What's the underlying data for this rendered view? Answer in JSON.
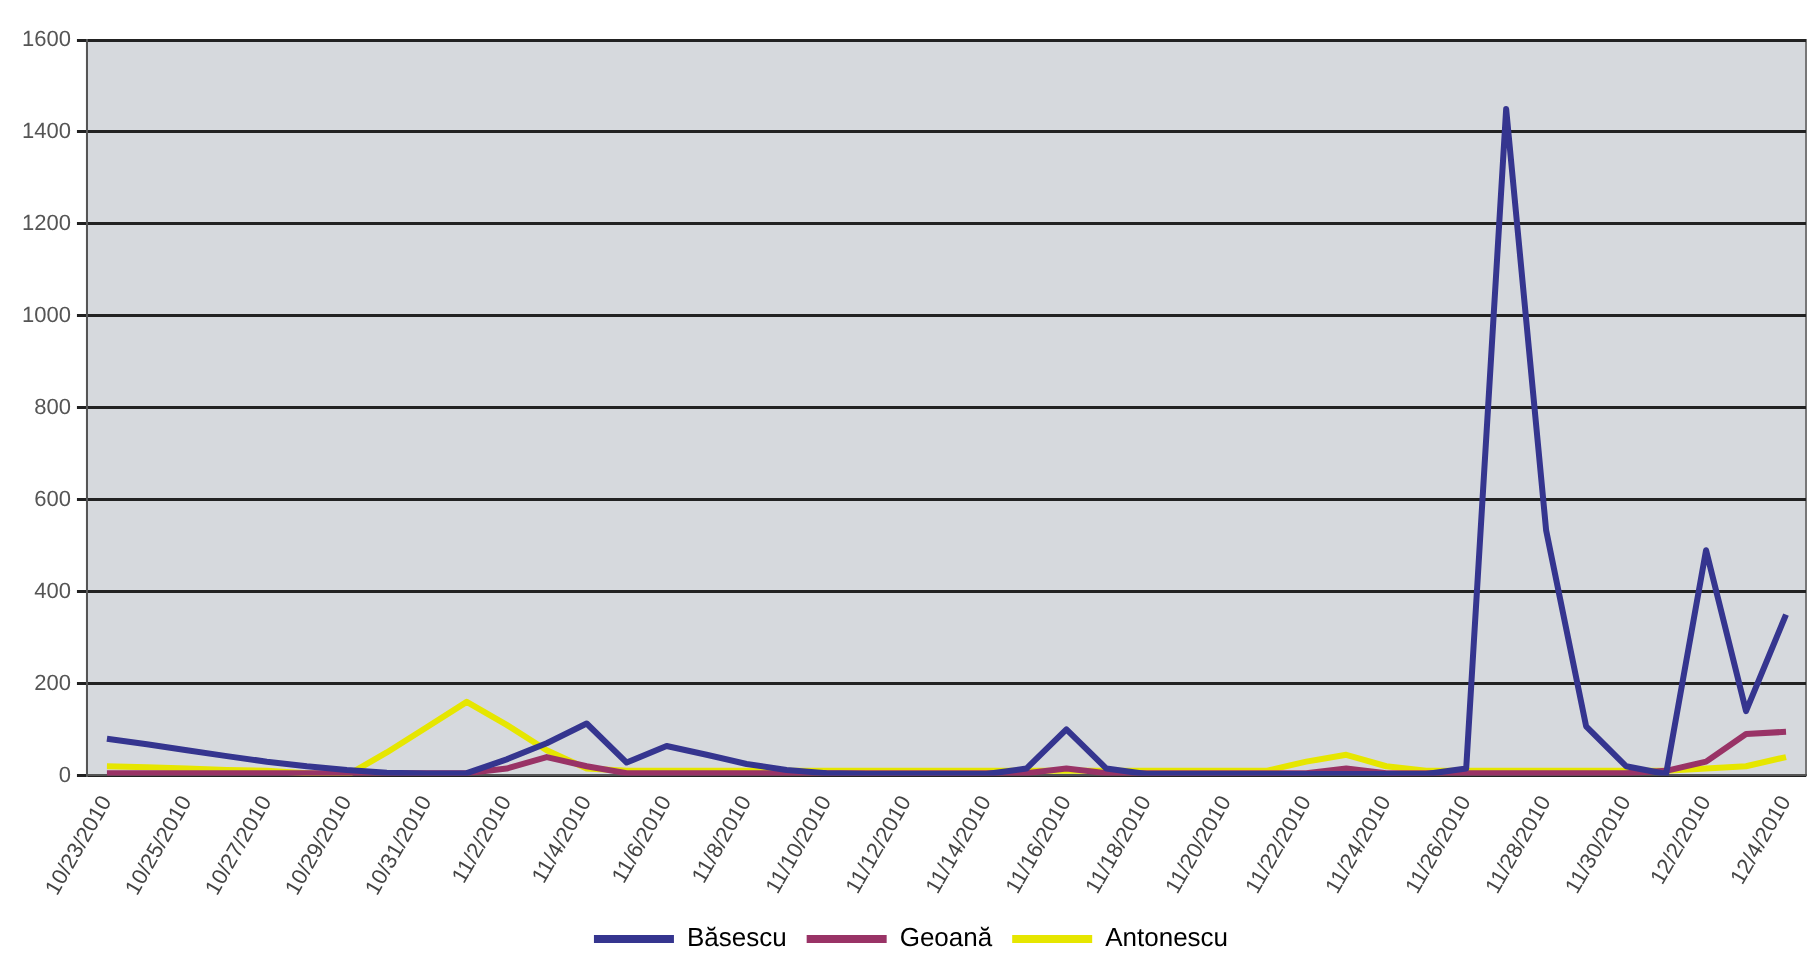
{
  "chart_data": {
    "type": "line",
    "categories": [
      "10/23/2010",
      null,
      "10/25/2010",
      null,
      "10/27/2010",
      null,
      "10/29/2010",
      null,
      "10/31/2010",
      null,
      "11/2/2010",
      null,
      "11/4/2010",
      null,
      "11/6/2010",
      null,
      "11/8/2010",
      null,
      "11/10/2010",
      null,
      "11/12/2010",
      null,
      "11/14/2010",
      null,
      "11/16/2010",
      null,
      "11/18/2010",
      null,
      "11/20/2010",
      null,
      "11/22/2010",
      null,
      "11/24/2010",
      null,
      "11/26/2010",
      null,
      "11/28/2010",
      null,
      "11/30/2010",
      null,
      "12/2/2010",
      null,
      "12/4/2010"
    ],
    "series": [
      {
        "name": "Băsescu",
        "color": "#35358f",
        "values": [
          80,
          68,
          55,
          42,
          30,
          20,
          12,
          6,
          4,
          5,
          35,
          70,
          113,
          28,
          64,
          45,
          25,
          12,
          5,
          3,
          3,
          3,
          3,
          15,
          100,
          15,
          3,
          3,
          3,
          3,
          3,
          3,
          3,
          3,
          15,
          1450,
          533,
          107,
          20,
          3,
          490,
          140,
          350
        ]
      },
      {
        "name": "Geoană",
        "color": "#993366",
        "values": [
          5,
          5,
          5,
          5,
          5,
          5,
          5,
          5,
          5,
          5,
          15,
          40,
          20,
          5,
          5,
          5,
          5,
          5,
          5,
          5,
          5,
          5,
          5,
          5,
          15,
          5,
          5,
          5,
          5,
          5,
          5,
          15,
          5,
          5,
          5,
          5,
          5,
          5,
          5,
          10,
          30,
          90,
          95
        ]
      },
      {
        "name": "Antonescu",
        "color": "#e6e600",
        "values": [
          20,
          18,
          15,
          12,
          10,
          5,
          0,
          50,
          105,
          160,
          110,
          55,
          15,
          10,
          10,
          10,
          10,
          10,
          10,
          10,
          10,
          10,
          10,
          10,
          10,
          10,
          10,
          10,
          10,
          10,
          30,
          45,
          20,
          10,
          10,
          10,
          10,
          10,
          10,
          10,
          15,
          20,
          40
        ]
      }
    ],
    "ylim": [
      0,
      1600
    ],
    "yticks": [
      0,
      200,
      400,
      600,
      800,
      1000,
      1200,
      1400,
      1600
    ],
    "grid": "y",
    "legend": "bottom",
    "marker": "none",
    "line_style": "solid"
  }
}
